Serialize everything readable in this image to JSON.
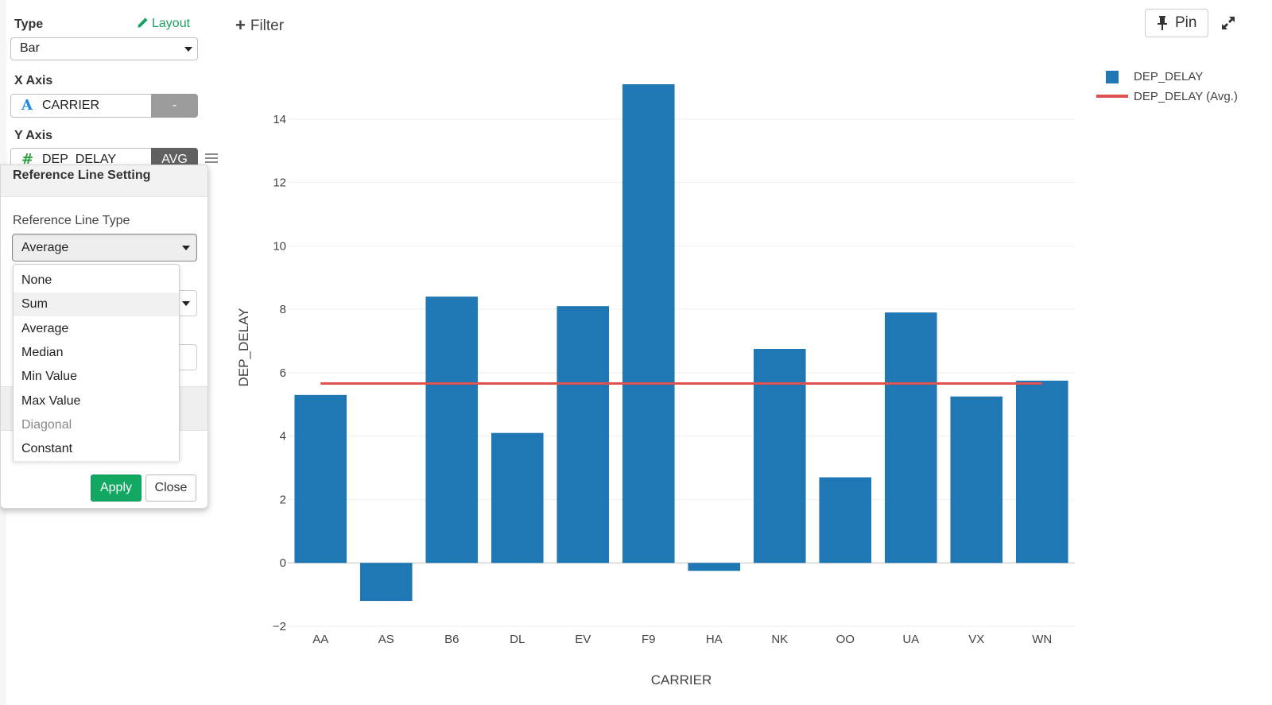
{
  "config": {
    "type_label": "Type",
    "layout_link": "Layout",
    "type_value": "Bar",
    "x_axis_label": "X Axis",
    "x_field_icon": "A",
    "x_field": "CARRIER",
    "x_agg": "-",
    "y_axis_label": "Y Axis",
    "y_field_icon": "#",
    "y_field": "DEP_DELAY",
    "y_agg": "AVG"
  },
  "popover": {
    "title": "Reference Line Setting",
    "type_label": "Reference Line Type",
    "selected": "Average",
    "options": [
      {
        "label": "None",
        "state": "normal"
      },
      {
        "label": "Sum",
        "state": "hover"
      },
      {
        "label": "Average",
        "state": "normal"
      },
      {
        "label": "Median",
        "state": "normal"
      },
      {
        "label": "Min Value",
        "state": "normal"
      },
      {
        "label": "Max Value",
        "state": "normal"
      },
      {
        "label": "Diagonal",
        "state": "disabled"
      },
      {
        "label": "Constant",
        "state": "normal"
      }
    ],
    "apply": "Apply",
    "close": "Close"
  },
  "toolbar": {
    "filter": "Filter",
    "pin": "Pin"
  },
  "colors": {
    "bar": "#1f77b4",
    "ref_line": "#e05252",
    "apply": "#12a862",
    "accent": "#1aa260"
  },
  "icons": {
    "layout": "pencil-icon",
    "x_field": "text-type-icon",
    "y_field": "number-type-icon",
    "menu": "hamburger-menu-icon",
    "filter": "plus-icon",
    "pin": "pin-icon",
    "expand": "expand-icon"
  },
  "chart_data": {
    "type": "bar",
    "categories": [
      "AA",
      "AS",
      "B6",
      "DL",
      "EV",
      "F9",
      "HA",
      "NK",
      "OO",
      "UA",
      "VX",
      "WN"
    ],
    "series": [
      {
        "name": "DEP_DELAY",
        "values": [
          5.3,
          -1.2,
          8.4,
          4.1,
          8.1,
          15.1,
          -0.25,
          6.75,
          2.7,
          7.9,
          5.25,
          5.75
        ]
      }
    ],
    "reference_line": {
      "name": "DEP_DELAY (Avg.)",
      "value": 5.66
    },
    "xlabel": "CARRIER",
    "ylabel": "DEP_DELAY",
    "ylim": [
      -2,
      15.3
    ],
    "yticks": [
      -2,
      0,
      2,
      4,
      6,
      8,
      10,
      12,
      14
    ],
    "ytick_labels": [
      "−2",
      "0",
      "2",
      "4",
      "6",
      "8",
      "10",
      "12",
      "14"
    ],
    "grid": true,
    "legend": "top-right"
  }
}
